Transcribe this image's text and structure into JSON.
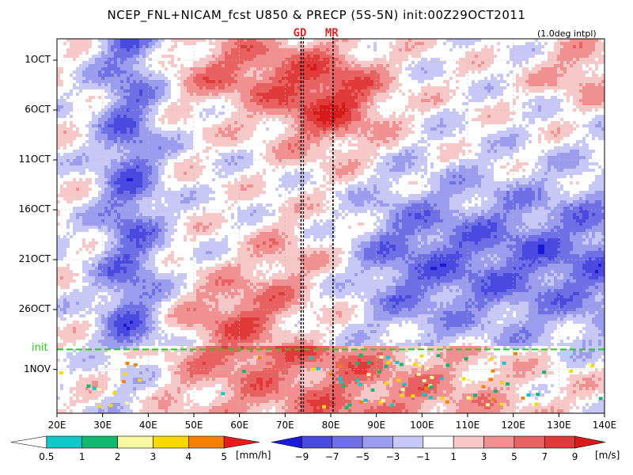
{
  "title": "NCEP_FNL+NICAM_fcst U850 & PRECP (5S-5N) init:00Z29OCT2011",
  "interp_note": "(1.0deg intpl)",
  "markers": [
    {
      "label": "GD",
      "lon": 73.5,
      "color": "#d4282a"
    },
    {
      "label": "MR",
      "lon": 80.5,
      "color": "#d4282a"
    }
  ],
  "init_line": {
    "label": "init",
    "day": 29,
    "color": "#22cc22"
  },
  "chart_data": {
    "type": "heatmap",
    "description_x": "longitude",
    "x_range": [
      20,
      140
    ],
    "x_ticks": [
      "20E",
      "30E",
      "40E",
      "50E",
      "60E",
      "70E",
      "80E",
      "90E",
      "100E",
      "110E",
      "120E",
      "130E",
      "140E"
    ],
    "y_range_days_from_1oct": [
      -1,
      35
    ],
    "y_ticks": [
      {
        "label": "1OCT",
        "day": 0
      },
      {
        "label": "6OCT",
        "day": 5
      },
      {
        "label": "11OCT",
        "day": 10
      },
      {
        "label": "16OCT",
        "day": 15
      },
      {
        "label": "21OCT",
        "day": 20
      },
      {
        "label": "26OCT",
        "day": 25
      },
      {
        "label": "1NOV",
        "day": 31
      }
    ],
    "u850_levels": [
      -9,
      -7,
      -5,
      -3,
      -1,
      1,
      3,
      5,
      7,
      9
    ],
    "u850_colors": [
      "#1a1ad6",
      "#4a4ae0",
      "#7070e6",
      "#9c9cee",
      "#c8c8f6",
      "#ffffff",
      "#f6c8c8",
      "#f09090",
      "#e86262",
      "#e03a3a",
      "#d81a1a"
    ],
    "u850_units": "[m/s]",
    "precip_levels": [
      0.5,
      1,
      2,
      3,
      4,
      5
    ],
    "precip_colors": [
      "#ffffff",
      "#10c8c8",
      "#10b870",
      "#f8f8a0",
      "#f8d800",
      "#f88000",
      "#e81a1a"
    ],
    "precip_units": "[mm/h]",
    "features": [
      {
        "name": "easterly band near 35E",
        "lon": 35,
        "sign": -1,
        "strength": 6
      },
      {
        "name": "westerly burst early Oct near 80E",
        "lon": 80,
        "day": 4,
        "sign": 1,
        "strength": 8
      },
      {
        "name": "easterlies 85E-140E mid-late Oct",
        "lon": 115,
        "day": 20,
        "sign": -1,
        "strength": 6
      },
      {
        "name": "westerlies 50E-70E late Oct",
        "lon": 60,
        "day": 25,
        "sign": 1,
        "strength": 6
      },
      {
        "name": "westerlies after init 40E-140E",
        "lon": 80,
        "day": 31,
        "sign": 1,
        "strength": 6
      }
    ]
  }
}
